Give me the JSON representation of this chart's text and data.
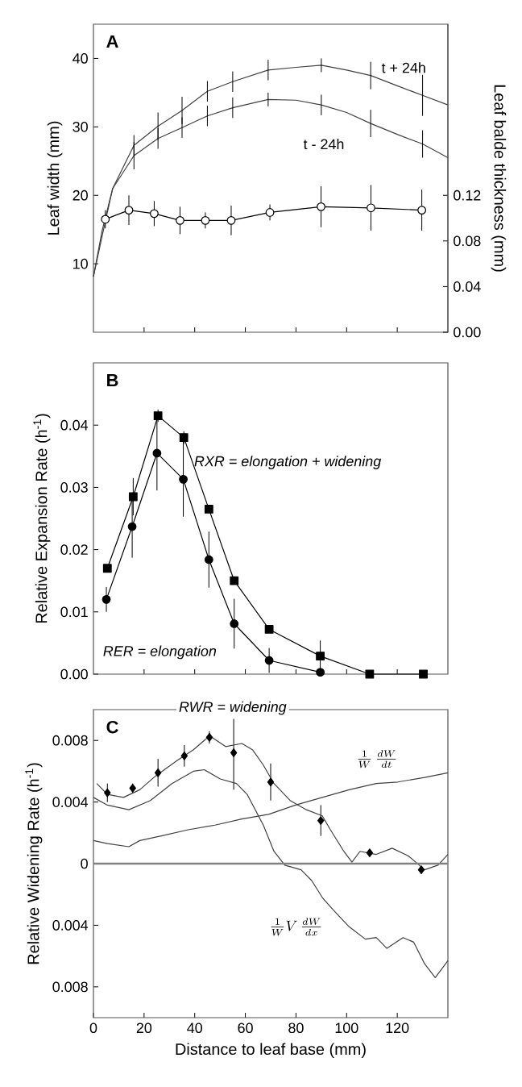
{
  "chart_data": [
    {
      "type": "line",
      "title": "A",
      "ylabel": "Leaf width (mm)",
      "y2label": "Leaf balde thickness (mm)",
      "xlim": [
        0,
        140
      ],
      "ylim": [
        0,
        45
      ],
      "y2lim": [
        0,
        0.27
      ],
      "xticks": [
        {
          "value": 20,
          "label": null
        },
        {
          "value": 40,
          "label": null
        },
        {
          "value": 60,
          "label": null
        },
        {
          "value": 80,
          "label": null
        },
        {
          "value": 100,
          "label": null
        },
        {
          "value": 120,
          "label": null
        }
      ],
      "yticks": [
        10,
        20,
        30,
        40
      ],
      "y2ticks": [
        {
          "value": 0,
          "label": "0.00"
        },
        {
          "value": 0.04,
          "label": "0.04"
        },
        {
          "value": 0.08,
          "label": "0.08"
        },
        {
          "value": 0.12,
          "label": "0.12"
        }
      ],
      "tick_labels": "y",
      "series": [
        {
          "name": "t + 24h",
          "color": "#404040",
          "marker": "none",
          "x": [
            0,
            3.4,
            7.6,
            16,
            25.5,
            35,
            45,
            55,
            69,
            80,
            90,
            100,
            109.5,
            120,
            130,
            140
          ],
          "values": [
            8.1,
            14,
            21,
            27.3,
            30.1,
            32.4,
            35.2,
            36.6,
            38.3,
            38.7,
            39,
            38.3,
            37.5,
            36,
            34.6,
            33.2
          ],
          "errors": [
            null,
            null,
            null,
            1.5,
            2,
            2,
            1.5,
            1.5,
            1.5,
            null,
            1,
            null,
            2,
            null,
            3,
            null
          ]
        },
        {
          "name": "t - 24h",
          "color": "#404040",
          "marker": "none",
          "x": [
            0,
            3.4,
            7.6,
            16,
            25.5,
            35,
            45,
            55,
            69,
            80,
            90,
            100,
            109.5,
            120,
            130,
            140
          ],
          "values": [
            8.1,
            14.8,
            21,
            25.8,
            28.3,
            29.9,
            31.6,
            32.8,
            34,
            33.9,
            33.2,
            32.1,
            30.5,
            28.9,
            27.5,
            25.5
          ],
          "errors": [
            null,
            null,
            null,
            2,
            1.5,
            1.5,
            1.5,
            1.5,
            1,
            null,
            1.5,
            null,
            2,
            null,
            2,
            null
          ]
        },
        {
          "color": "#ffffff",
          "marker": "circle",
          "axis": "y2",
          "x": [
            4.7,
            14,
            24,
            34.2,
            44.2,
            54.4,
            69.7,
            89.9,
            109.6,
            129.7
          ],
          "values": [
            0.099,
            0.107,
            0.104,
            0.098,
            0.098,
            0.098,
            0.105,
            0.11,
            0.109,
            0.107
          ],
          "errors": [
            0.008,
            0.013,
            0.011,
            0.012,
            0.007,
            0.013,
            0.007,
            0.018,
            0.02,
            0.018
          ]
        }
      ]
    },
    {
      "type": "line",
      "title": "B",
      "ylabel": "Relative Expansion Rate (h$^{-1}$)",
      "xlim": [
        0,
        140
      ],
      "ylim": [
        0,
        0.05
      ],
      "xticks": [
        {
          "value": 20,
          "label": null
        },
        {
          "value": 40,
          "label": null
        },
        {
          "value": 60,
          "label": null
        },
        {
          "value": 80,
          "label": null
        },
        {
          "value": 100,
          "label": null
        },
        {
          "value": 120,
          "label": null
        }
      ],
      "yticks": [
        {
          "value": 0,
          "label": "0.00"
        },
        0.01,
        0.02,
        0.03,
        0.04
      ],
      "tick_labels": "y",
      "series": [
        {
          "name": "RXR = elongation + widening",
          "color": "#000000",
          "marker": "square",
          "x": [
            5.5,
            15.7,
            25.5,
            35.7,
            45.6,
            55.6,
            69.4,
            89.6,
            109.1,
            130.3
          ],
          "values": [
            0.017,
            0.0285,
            0.0415,
            0.038,
            0.0265,
            0.015,
            0.0072,
            0.0029,
            0,
            0
          ],
          "errors": [
            null,
            0.003,
            0.001,
            0.001,
            null,
            null,
            null,
            0.0025,
            null,
            null
          ]
        },
        {
          "name": "RER = elongation",
          "color": "#000000",
          "marker": "circle",
          "x": [
            5.1,
            15.3,
            25.1,
            35.5,
            45.6,
            55.6,
            69.4,
            89.6
          ],
          "values": [
            0.012,
            0.0237,
            0.0355,
            0.0313,
            0.0184,
            0.0081,
            0.0022,
            0.0003
          ],
          "errors": [
            0.002,
            0.005,
            0.006,
            0.006,
            0.0045,
            0.004,
            0.002,
            null
          ]
        }
      ]
    },
    {
      "type": "line",
      "title": "C",
      "xlabel": "Distance to leaf base (mm)",
      "ylabel": "Relative Widening Rate (h$^{-1}$)",
      "xlim": [
        0,
        140
      ],
      "ylim": [
        -0.01,
        0.01
      ],
      "xticks": [
        0,
        20,
        40,
        60,
        80,
        100,
        120
      ],
      "yticks": [
        {
          "value": -0.008,
          "label": "0.008"
        },
        {
          "value": -0.004,
          "label": "0.004"
        },
        0,
        0.004,
        0.008
      ],
      "ref_lines": [
        {
          "axis": "y",
          "value": 0,
          "color": "#808080"
        }
      ],
      "annotations": [
        "RWR = widening"
      ],
      "series": [
        {
          "type": "scatter",
          "color": "#000000",
          "marker": "diamond",
          "x": [
            5.5,
            15.5,
            25.5,
            35.9,
            45.8,
            55.4,
            70,
            89.8,
            109.1,
            129.5
          ],
          "values": [
            0.0046,
            0.0049,
            0.0059,
            0.007,
            0.0082,
            0.0072,
            0.0053,
            0.0028,
            0.0007,
            -0.0004
          ],
          "errors": [
            0.0006,
            0.0003,
            0.0009,
            0.0007,
            0.0004,
            [
              0.0048,
              0.0094
            ],
            0.0012,
            0.001,
            null,
            null
          ]
        },
        {
          "color": "#404040",
          "marker": "none",
          "x": [
            1.3,
            5.5,
            11.9,
            18.3,
            24.6,
            33.1,
            39.5,
            45.9,
            52.2,
            58.6,
            62.8,
            67.1,
            71.3,
            77.7,
            84.1,
            90.4,
            93.6,
            98.9,
            102.1,
            105.3,
            111.7,
            118,
            124.4,
            130.8,
            136.1,
            140
          ],
          "values": [
            0.0052,
            0.0045,
            0.0043,
            0.0048,
            0.0057,
            0.0067,
            0.0074,
            0.0083,
            0.0076,
            0.0078,
            0.0074,
            0.0064,
            0.0052,
            0.0041,
            0.0035,
            0.0031,
            0.0022,
            0.0008,
            0.0001,
            0.0008,
            0.0006,
            0.001,
            0.0005,
            -0.0004,
            -0.0001,
            0.0006
          ]
        },
        {
          "name": "\\frac{1}{W}\\,\\frac{dW}{dt}",
          "color": "#404040",
          "marker": "none",
          "x": [
            0,
            5.5,
            14,
            18.3,
            26.8,
            37.4,
            48,
            58.6,
            69.2,
            79.8,
            90.4,
            101,
            111.7,
            120.2,
            130.8,
            140
          ],
          "values": [
            0.0015,
            0.0013,
            0.0011,
            0.0015,
            0.0018,
            0.0022,
            0.0025,
            0.0029,
            0.0032,
            0.0038,
            0.0043,
            0.0048,
            0.0052,
            0.0053,
            0.0056,
            0.0059
          ]
        },
        {
          "name": "\\frac{1}{W}V\\,\\frac{dW}{dx}",
          "color": "#404040",
          "marker": "none",
          "x": [
            0,
            5.5,
            14,
            22.5,
            31,
            39.5,
            43.8,
            50.1,
            56.5,
            60.7,
            67.1,
            71.3,
            75.6,
            82,
            86.2,
            90.4,
            94.7,
            101,
            107.4,
            111.7,
            115.9,
            122.3,
            126.5,
            130.8,
            135,
            140
          ],
          "values": [
            0.0043,
            0.0038,
            0.0035,
            0.0041,
            0.0052,
            0.006,
            0.0061,
            0.0055,
            0.0052,
            0.0045,
            0.0025,
            0.0008,
            -0.0001,
            -0.0004,
            -0.0011,
            -0.0022,
            -0.003,
            -0.0041,
            -0.0049,
            -0.0048,
            -0.0055,
            -0.0048,
            -0.0051,
            -0.0065,
            -0.0074,
            -0.0063
          ]
        }
      ]
    }
  ]
}
